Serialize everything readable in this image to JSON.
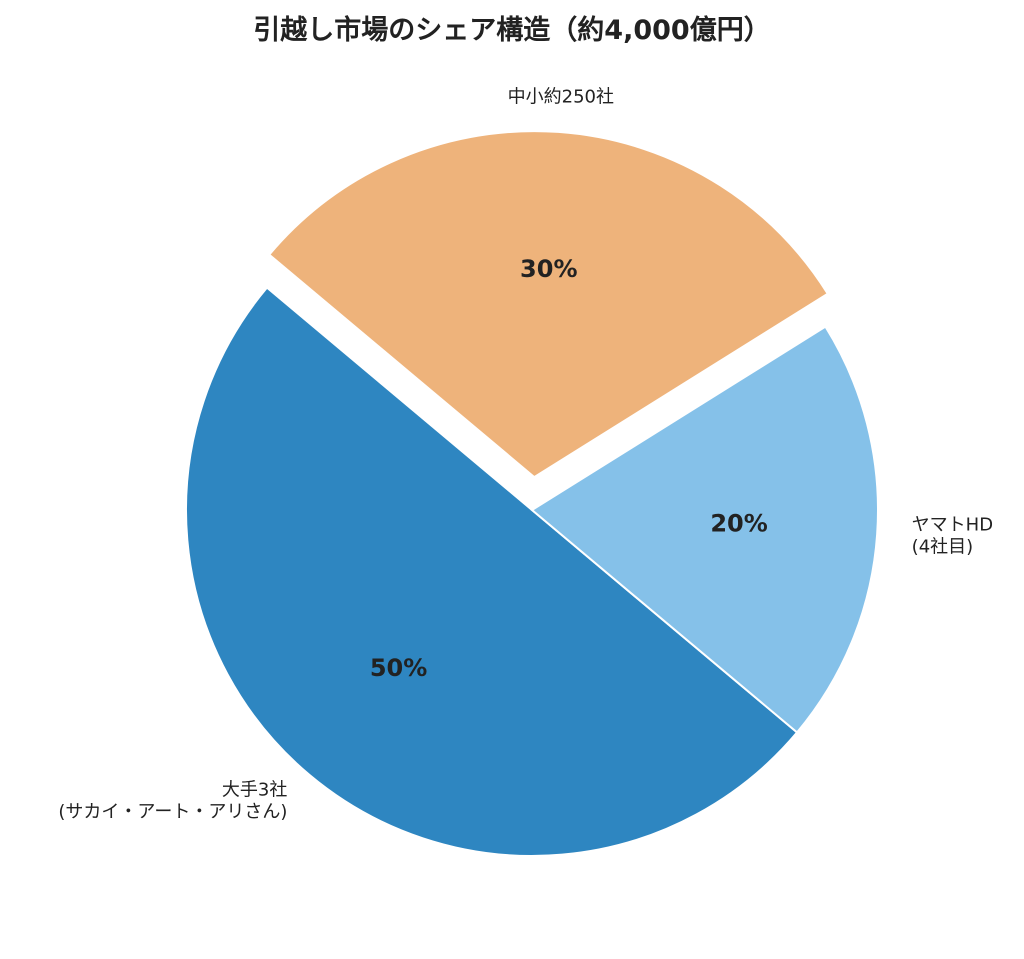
{
  "chart_data": {
    "type": "pie",
    "title": "引越し市場のシェア構造（約4,000億円）",
    "start_angle_deg": 140,
    "direction": "counterclockwise",
    "slices": [
      {
        "label_lines": [
          "大手3社",
          "(サカイ・アート・アリさん)"
        ],
        "value": 50,
        "pct_label": "50%",
        "color": "#2e86c1",
        "explode": false
      },
      {
        "label_lines": [
          "ヤマトHD",
          "(4社目)"
        ],
        "value": 20,
        "pct_label": "20%",
        "color": "#85c1e9",
        "explode": false
      },
      {
        "label_lines": [
          "中小約250社"
        ],
        "value": 30,
        "pct_label": "30%",
        "color": "#eeb37b",
        "explode": true
      }
    ],
    "legend": "none"
  }
}
